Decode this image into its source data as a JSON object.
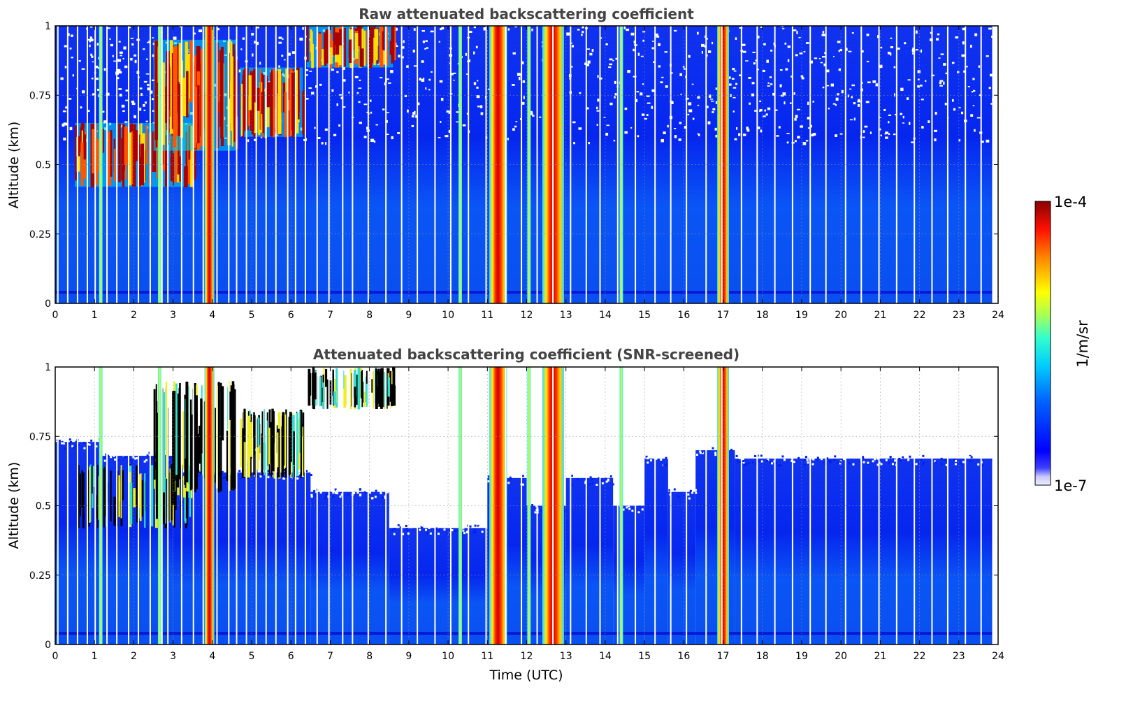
{
  "chart_data": [
    {
      "type": "heatmap",
      "title": "Raw attenuated backscattering coefficient",
      "xlabel": "",
      "ylabel": "Altitude (km)",
      "xlim": [
        0,
        24
      ],
      "ylim": [
        0,
        1
      ],
      "x_ticks": [
        "0",
        "1",
        "2",
        "3",
        "4",
        "5",
        "6",
        "7",
        "8",
        "9",
        "10",
        "11",
        "12",
        "13",
        "14",
        "15",
        "16",
        "17",
        "18",
        "19",
        "20",
        "21",
        "22",
        "23",
        "24"
      ],
      "y_ticks": [
        "0",
        "0.25",
        "0.5",
        "0.75",
        "1"
      ],
      "grid": true,
      "features": {
        "data_gaps_utc": [
          0.05,
          0.3,
          0.55,
          0.8,
          1.0,
          1.3,
          1.55,
          1.85,
          2.1,
          2.4,
          2.7,
          2.85,
          3.2,
          3.5,
          3.75,
          4.1,
          4.4,
          4.6,
          4.85,
          5.1,
          5.35,
          5.6,
          5.9,
          6.1,
          6.35,
          6.65,
          6.95,
          7.3,
          7.55,
          7.95,
          8.4,
          8.8,
          9.2,
          9.65,
          10.05,
          10.5,
          10.95,
          11.45,
          11.85,
          12.25,
          12.65,
          13.1,
          13.5,
          13.85,
          14.3,
          14.75,
          15.25,
          15.65,
          16.05,
          16.55,
          16.95,
          17.45,
          17.85,
          18.3,
          18.75,
          19.2,
          19.6,
          20.1,
          20.5,
          20.95,
          21.4,
          21.85,
          22.3,
          22.7,
          23.15,
          23.55
        ],
        "data_end_utc": 23.85,
        "strong_returns_utc": [
          {
            "start": 11.05,
            "end": 11.5
          },
          {
            "start": 12.4,
            "end": 12.95
          },
          {
            "start": 3.8,
            "end": 4.05
          },
          {
            "start": 16.85,
            "end": 17.15
          }
        ],
        "cloud_layers": [
          {
            "start": 0.5,
            "end": 3.5,
            "base_km": 0.42,
            "top_km": 0.65
          },
          {
            "start": 2.5,
            "end": 4.6,
            "base_km": 0.55,
            "top_km": 0.95
          },
          {
            "start": 4.7,
            "end": 6.3,
            "base_km": 0.6,
            "top_km": 0.85
          },
          {
            "start": 6.4,
            "end": 8.6,
            "base_km": 0.85,
            "top_km": 1.0
          }
        ],
        "surface_band_km": 0.04
      }
    },
    {
      "type": "heatmap",
      "title": "Attenuated backscattering coefficient (SNR-screened)",
      "xlabel": "Time (UTC)",
      "ylabel": "Altitude (km)",
      "xlim": [
        0,
        24
      ],
      "ylim": [
        0,
        1
      ],
      "x_ticks": [
        "0",
        "1",
        "2",
        "3",
        "4",
        "5",
        "6",
        "7",
        "8",
        "9",
        "10",
        "11",
        "12",
        "13",
        "14",
        "15",
        "16",
        "17",
        "18",
        "19",
        "20",
        "21",
        "22",
        "23",
        "24"
      ],
      "y_ticks": [
        "0",
        "0.25",
        "0.5",
        "0.75",
        "1"
      ],
      "grid": true,
      "features": {
        "screened_top_km": [
          {
            "start": 0.0,
            "end": 1.2,
            "top_km": 0.73
          },
          {
            "start": 1.2,
            "end": 3.0,
            "top_km": 0.68
          },
          {
            "start": 3.0,
            "end": 6.5,
            "top_km": 0.62
          },
          {
            "start": 6.5,
            "end": 8.5,
            "top_km": 0.55
          },
          {
            "start": 8.5,
            "end": 11.0,
            "top_km": 0.42
          },
          {
            "start": 11.0,
            "end": 12.0,
            "top_km": 0.6
          },
          {
            "start": 12.0,
            "end": 13.0,
            "top_km": 0.5
          },
          {
            "start": 13.0,
            "end": 14.2,
            "top_km": 0.6
          },
          {
            "start": 14.2,
            "end": 15.0,
            "top_km": 0.5
          },
          {
            "start": 15.0,
            "end": 15.6,
            "top_km": 0.67
          },
          {
            "start": 15.6,
            "end": 16.3,
            "top_km": 0.55
          },
          {
            "start": 16.3,
            "end": 17.3,
            "top_km": 0.7
          },
          {
            "start": 17.3,
            "end": 23.85,
            "top_km": 0.67
          }
        ]
      }
    }
  ],
  "colorbar": {
    "label": "1/m/sr",
    "max_label": "1e-4",
    "min_label": "1e-7",
    "scale": "log",
    "colormap": "jet"
  }
}
